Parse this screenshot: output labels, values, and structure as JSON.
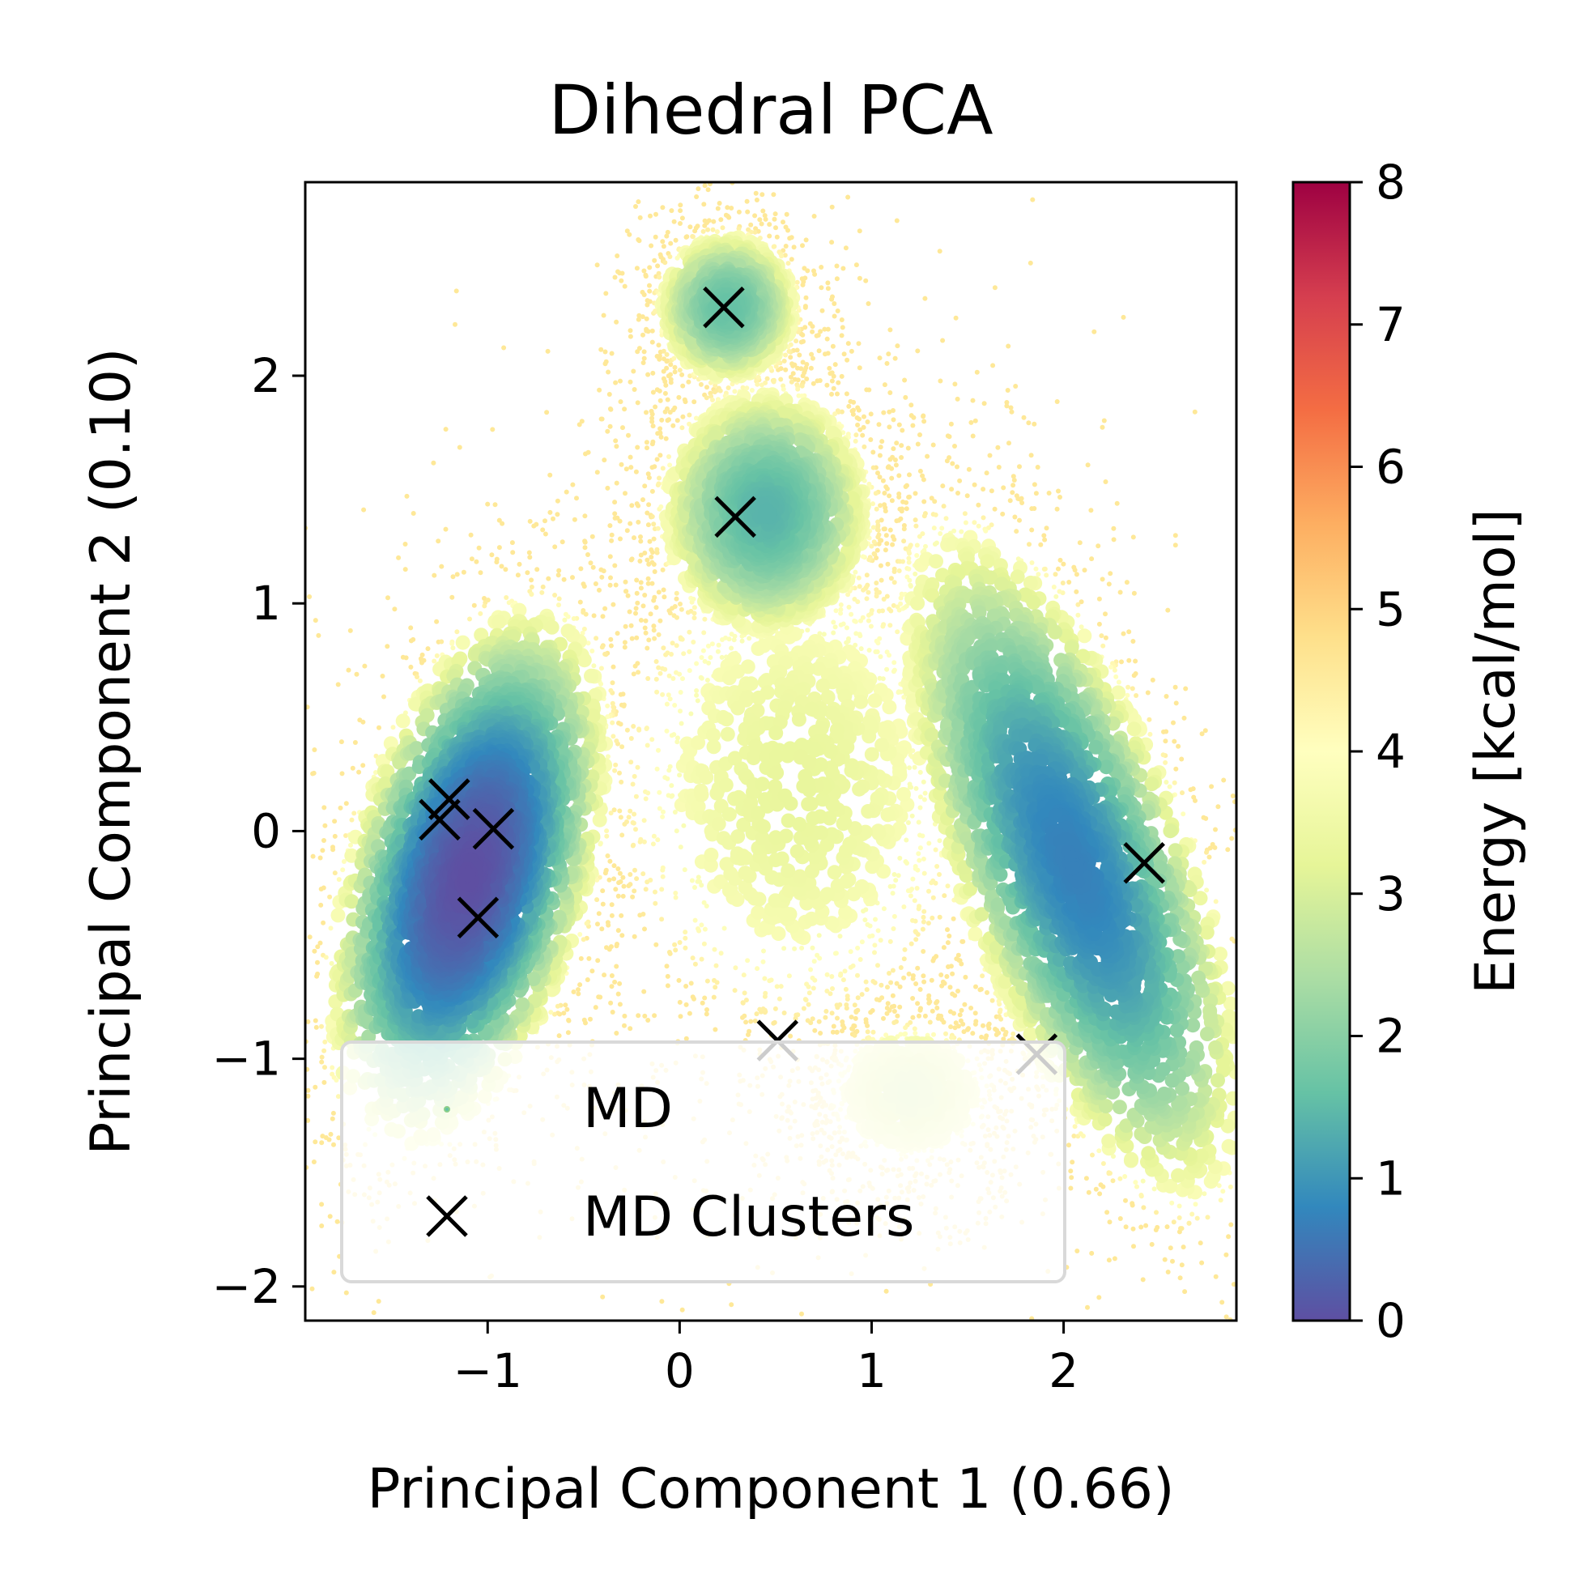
{
  "chart_data": {
    "type": "scatter",
    "title": "Dihedral PCA",
    "xlabel": "Principal Component 1 (0.66)",
    "ylabel": "Principal Component 2 (0.10)",
    "xlim": [
      -1.95,
      2.9
    ],
    "ylim": [
      -2.15,
      2.85
    ],
    "xticks": [
      -1,
      0,
      1,
      2
    ],
    "xtick_labels": [
      "−1",
      "0",
      "1",
      "2"
    ],
    "yticks": [
      -2,
      -1,
      0,
      1,
      2
    ],
    "ytick_labels": [
      "−2",
      "−1",
      "0",
      "1",
      "2"
    ],
    "grid": false,
    "legend": {
      "placement": "lower-left",
      "entries": [
        "MD",
        "MD Clusters"
      ]
    },
    "colorbar": {
      "label": "Energy [kcal/mol]",
      "colormap": "Spectral_r",
      "range": [
        0,
        8
      ],
      "ticks": [
        0,
        1,
        2,
        3,
        4,
        5,
        6,
        7,
        8
      ],
      "tick_labels": [
        "0",
        "1",
        "2",
        "3",
        "4",
        "5",
        "6",
        "7",
        "8"
      ]
    },
    "series": [
      {
        "name": "MD",
        "kind": "density-scatter",
        "color_by": "energy",
        "basins": [
          {
            "cx": -1.1,
            "cy": -0.2,
            "sx": 0.3,
            "sy": 0.6,
            "rot": -0.35,
            "weight": 1.0,
            "min_energy": 0.0
          },
          {
            "cx": 2.05,
            "cy": -0.15,
            "sx": 0.32,
            "sy": 0.85,
            "rot": 0.45,
            "weight": 0.85,
            "min_energy": 0.7
          },
          {
            "cx": 0.45,
            "cy": 1.4,
            "sx": 0.32,
            "sy": 0.32,
            "rot": 0.0,
            "weight": 0.5,
            "min_energy": 1.4
          },
          {
            "cx": 0.25,
            "cy": 2.3,
            "sx": 0.22,
            "sy": 0.2,
            "rot": 0.0,
            "weight": 0.35,
            "min_energy": 1.6
          },
          {
            "cx": 1.2,
            "cy": -1.15,
            "sx": 0.35,
            "sy": 0.25,
            "rot": 0.0,
            "weight": 0.3,
            "min_energy": 3.0
          },
          {
            "cx": 0.6,
            "cy": 0.2,
            "sx": 0.8,
            "sy": 0.9,
            "rot": 0.0,
            "weight": 0.6,
            "min_energy": 3.3
          }
        ]
      },
      {
        "name": "MD Clusters",
        "kind": "marker",
        "marker": "x",
        "color": "#000000",
        "points": [
          {
            "x": 0.23,
            "y": 2.3
          },
          {
            "x": 0.29,
            "y": 1.38
          },
          {
            "x": -1.2,
            "y": 0.14
          },
          {
            "x": -1.25,
            "y": 0.05
          },
          {
            "x": -0.97,
            "y": 0.01
          },
          {
            "x": -1.05,
            "y": -0.38
          },
          {
            "x": 2.42,
            "y": -0.14
          },
          {
            "x": 0.51,
            "y": -0.92
          },
          {
            "x": 1.86,
            "y": -0.98
          }
        ]
      }
    ]
  }
}
